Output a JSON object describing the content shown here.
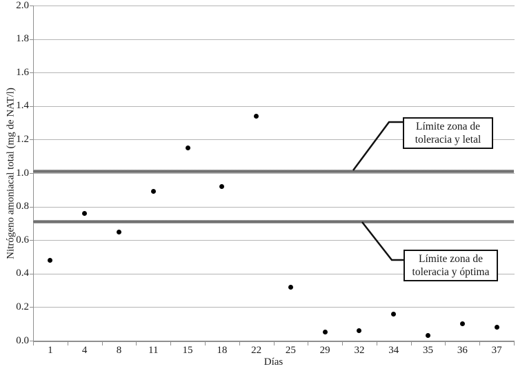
{
  "chart_data": {
    "type": "scatter",
    "title": "",
    "xlabel": "Días",
    "ylabel": "Nitrógeno amoniacal total (mg de NAT/l)",
    "ylim": [
      0.0,
      2.0
    ],
    "ytick_step": 0.2,
    "ytick_labels": [
      "0.0",
      "0.2",
      "0.4",
      "0.6",
      "0.8",
      "1.0",
      "1.2",
      "1.4",
      "1.6",
      "1.8",
      "2.0"
    ],
    "categories": [
      "1",
      "4",
      "8",
      "11",
      "15",
      "18",
      "22",
      "25",
      "29",
      "32",
      "34",
      "35",
      "36",
      "37"
    ],
    "values": [
      0.48,
      0.76,
      0.65,
      0.89,
      1.15,
      0.92,
      1.34,
      0.32,
      0.05,
      0.06,
      0.16,
      0.03,
      0.1,
      0.08
    ],
    "grid": true,
    "legend": "none",
    "limit_lines": [
      {
        "value": 1.01,
        "label_line1": "Límite zona de",
        "label_line2": "toleracia y letal"
      },
      {
        "value": 0.71,
        "label_line1": "Límite zona de",
        "label_line2": "toleracia y óptima"
      }
    ],
    "colors": {
      "marker": "#000000",
      "gridline": "#b5b5b5",
      "axis": "#8f8f8f",
      "limit_line": "#6f6f6f",
      "annotation_border": "#111111",
      "annotation_bg": "#ffffff",
      "background": "#ffffff"
    }
  }
}
